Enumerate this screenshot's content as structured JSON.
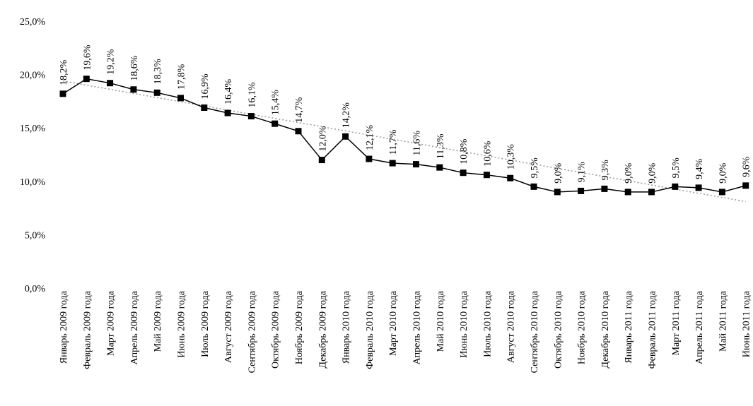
{
  "chart_data": {
    "type": "line",
    "title": "",
    "xlabel": "",
    "ylabel": "",
    "ylim": [
      0,
      25
    ],
    "y_ticks": [
      "0,0%",
      "5,0%",
      "10,0%",
      "15,0%",
      "20,0%",
      "25,0%"
    ],
    "y_tick_values": [
      0,
      5,
      10,
      15,
      20,
      25
    ],
    "grid": false,
    "legend": "none",
    "categories": [
      "Январь 2009 года",
      "Февраль 2009 года",
      "Март 2009 года",
      "Апрель 2009 года",
      "Май 2009 года",
      "Июнь 2009 года",
      "Июль 2009 года",
      "Август 2009 года",
      "Сентябрь 2009 года",
      "Октябрь 2009 года",
      "Ноябрь 2009 года",
      "Декабрь 2009 года",
      "Январь 2010 года",
      "Февраль 2010 года",
      "Март 2010 года",
      "Апрель 2010 года",
      "Май 2010 года",
      "Июнь 2010 года",
      "Июль 2010 года",
      "Август 2010 года",
      "Сентябрь 2010 года",
      "Октябрь 2010 года",
      "Ноябрь 2010 года",
      "Декабрь 2010 года",
      "Январь 2011 года",
      "Февраль 2011 года",
      "Март 2011 года",
      "Апрель 2011 года",
      "Май 2011 года",
      "Июнь 2011 года"
    ],
    "series": [
      {
        "values": [
          18.2,
          19.6,
          19.2,
          18.6,
          18.3,
          17.8,
          16.9,
          16.4,
          16.1,
          15.4,
          14.7,
          12.0,
          14.2,
          12.1,
          11.7,
          11.6,
          11.3,
          10.8,
          10.6,
          10.3,
          9.5,
          9.0,
          9.1,
          9.3,
          9.0,
          9.0,
          9.5,
          9.4,
          9.0,
          9.6
        ],
        "labels": [
          "18,2%",
          "19,6%",
          "19,2%",
          "18,6%",
          "18,3%",
          "17,8%",
          "16,9%",
          "16,4%",
          "16,1%",
          "15,4%",
          "14,7%",
          "12,0%",
          "14,2%",
          "12,1%",
          "11,7%",
          "11,6%",
          "11,3%",
          "10,8%",
          "10,6%",
          "10,3%",
          "9,5%",
          "9,0%",
          "9,1%",
          "9,3%",
          "9,0%",
          "9,0%",
          "9,5%",
          "9,4%",
          "9,0%",
          "9,6%"
        ],
        "color": "#000000",
        "marker": "square"
      }
    ],
    "trendline": {
      "style": "dotted",
      "color": "#999999",
      "start_value": 19.4,
      "end_value": 8.1
    }
  }
}
